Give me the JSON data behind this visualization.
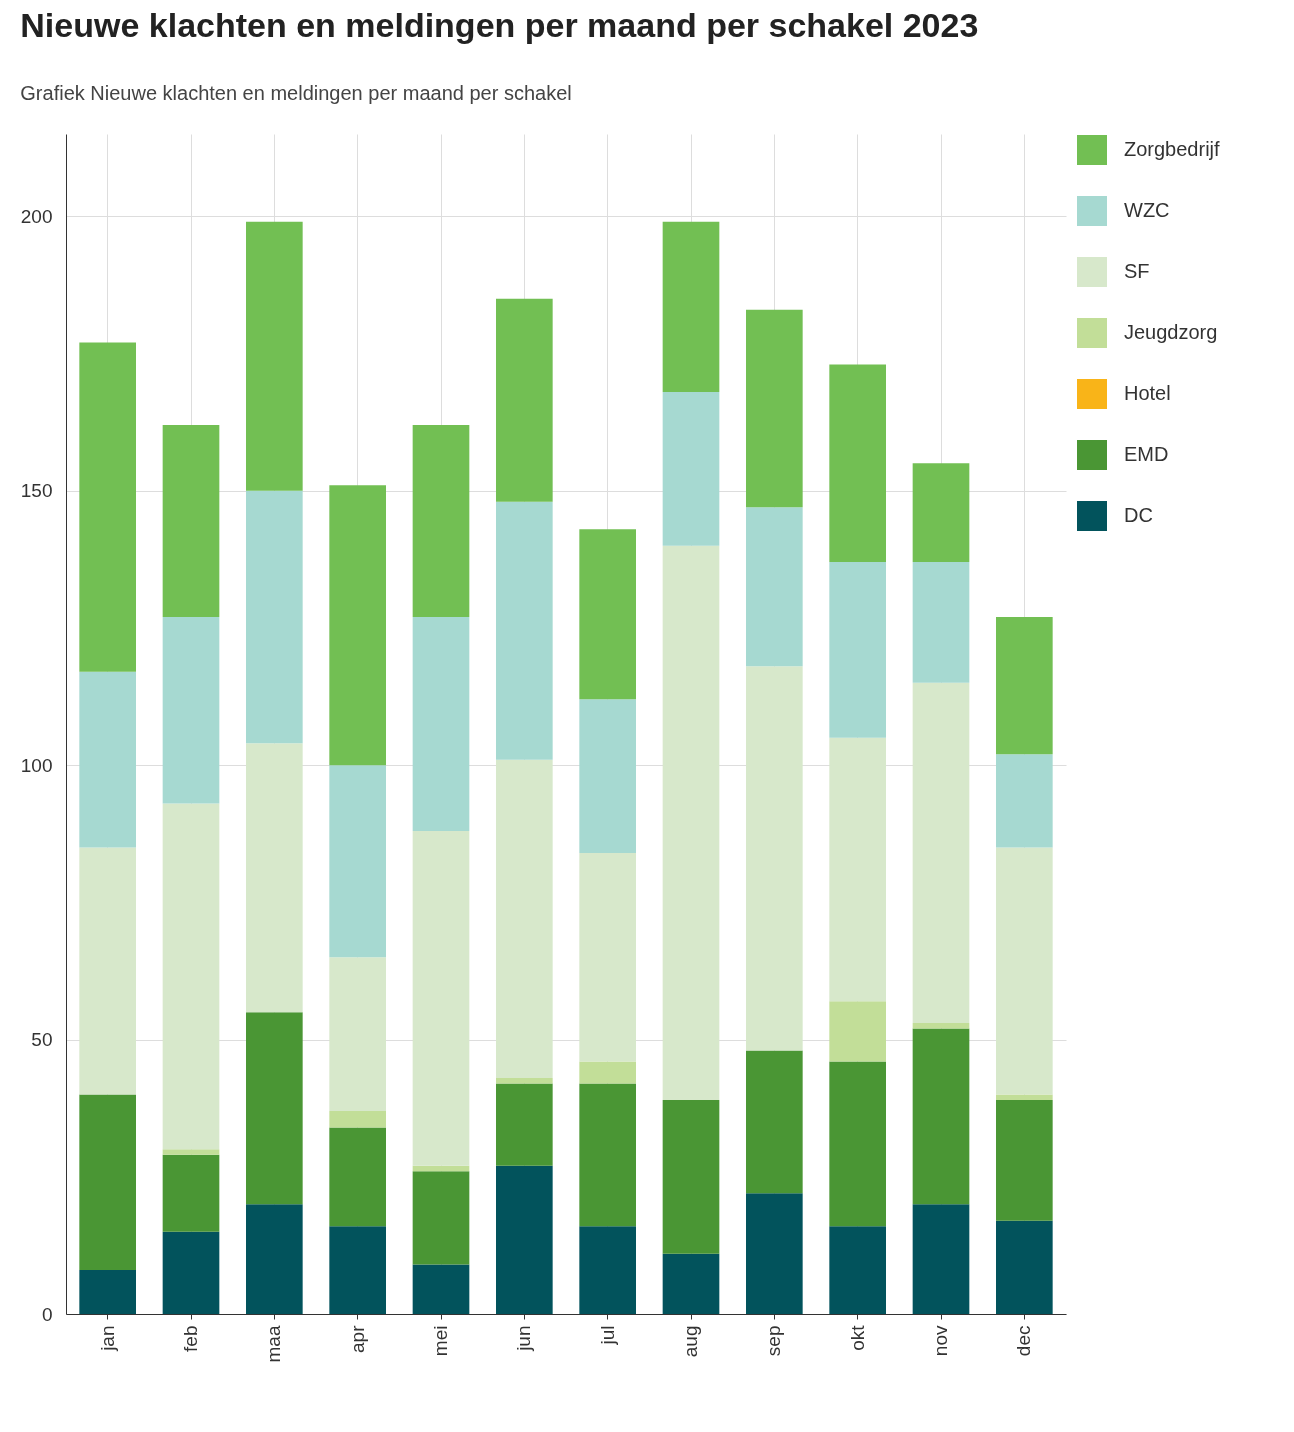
{
  "chart_data": {
    "type": "bar",
    "title": "Nieuwe klachten en meldingen per maand per schakel 2023",
    "subtitle": "Grafiek Nieuwe klachten en meldingen per maand per schakel",
    "stacked": true,
    "categories": [
      "jan",
      "feb",
      "maa",
      "apr",
      "mei",
      "jun",
      "jul",
      "aug",
      "sep",
      "okt",
      "nov",
      "dec"
    ],
    "series": [
      {
        "name": "DC",
        "color": "#02535c",
        "values": [
          8,
          15,
          20,
          16,
          9,
          27,
          16,
          11,
          22,
          16,
          20,
          17
        ]
      },
      {
        "name": "EMD",
        "color": "#4a9634",
        "values": [
          32,
          14,
          35,
          18,
          17,
          15,
          26,
          28,
          26,
          30,
          32,
          22
        ]
      },
      {
        "name": "Hotel",
        "color": "#f9b418",
        "values": [
          0,
          0,
          0,
          0,
          0,
          0,
          0,
          0,
          0,
          0,
          0,
          0
        ]
      },
      {
        "name": "Jeugdzorg",
        "color": "#c2de98",
        "values": [
          0,
          1,
          0,
          3,
          1,
          1,
          4,
          0,
          0,
          11,
          1,
          1
        ]
      },
      {
        "name": "SF",
        "color": "#d7e8cb",
        "values": [
          45,
          63,
          49,
          28,
          61,
          58,
          38,
          101,
          70,
          48,
          62,
          45
        ]
      },
      {
        "name": "WZC",
        "color": "#a6d9d1",
        "values": [
          32,
          34,
          46,
          35,
          39,
          47,
          28,
          28,
          29,
          32,
          22,
          17
        ]
      },
      {
        "name": "Zorgbedrijf",
        "color": "#72bf53",
        "values": [
          60,
          35,
          49,
          51,
          35,
          37,
          31,
          31,
          36,
          36,
          18,
          25
        ]
      }
    ],
    "ylim": [
      0,
      215
    ],
    "yticks": [
      0,
      50,
      100,
      150,
      200
    ],
    "grid": true,
    "legend": "top right"
  }
}
